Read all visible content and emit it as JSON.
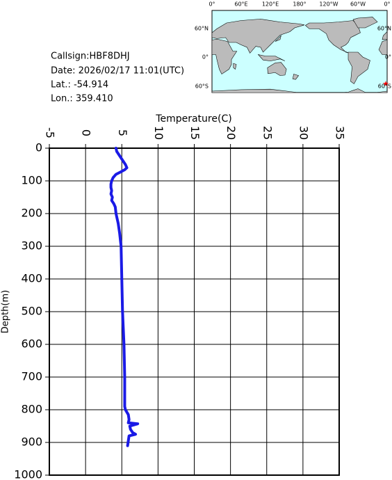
{
  "info": {
    "callsign": "Callsign:HBF8DHJ",
    "date": "Date:  2026/02/17 11:01(UTC)",
    "lat": "Lat.:  -54.914",
    "lon": "Lon.:  359.410"
  },
  "map": {
    "lon_labels": [
      "0°",
      "60°E",
      "120°E",
      "180°",
      "120°W",
      "60°W",
      "0°"
    ],
    "lat_labels": [
      "60°N",
      "0°",
      "60°S"
    ]
  },
  "chart_data": {
    "type": "line",
    "x_label": "Temperature(C)",
    "y_label": "Depth(m)",
    "color": "#1a1ae6",
    "grid": true,
    "y_inverted": true,
    "xlim": [
      -5,
      35
    ],
    "xticks": [
      -5,
      0,
      5,
      10,
      15,
      20,
      25,
      30,
      35
    ],
    "ylim": [
      0,
      1000
    ],
    "yticks": [
      0,
      100,
      200,
      300,
      400,
      500,
      600,
      700,
      800,
      900,
      1000
    ],
    "x": [
      4.2,
      4.3,
      4.6,
      4.9,
      5.2,
      5.5,
      5.7,
      5.4,
      4.9,
      4.2,
      3.8,
      3.6,
      3.5,
      3.5,
      3.6,
      3.5,
      3.7,
      3.6,
      3.9,
      4.1,
      4.2,
      4.5,
      4.7,
      4.9,
      5.0,
      5.1,
      5.3,
      5.4,
      5.4,
      5.5,
      5.9,
      6.0,
      5.9,
      7.2,
      6.1,
      6.2,
      6.5,
      6.9,
      6.0,
      5.9,
      5.8
    ],
    "values": [
      0,
      10,
      20,
      30,
      40,
      50,
      60,
      66,
      72,
      80,
      90,
      100,
      110,
      120,
      130,
      140,
      150,
      160,
      170,
      180,
      200,
      230,
      260,
      300,
      400,
      500,
      600,
      700,
      790,
      800,
      815,
      830,
      840,
      843,
      850,
      860,
      870,
      875,
      880,
      895,
      910
    ]
  }
}
